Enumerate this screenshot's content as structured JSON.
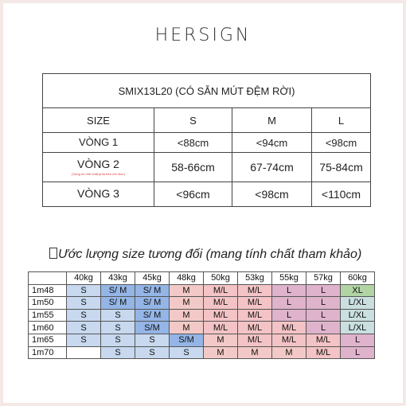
{
  "brand": "HERSIGN",
  "size_chart": {
    "title": "SMIX13L20 (CÓ SẴN MÚT ĐỆM RỜI)",
    "header": [
      "SIZE",
      "S",
      "M",
      "L"
    ],
    "rows": [
      {
        "label": "VÒNG 1",
        "note": "",
        "values": [
          "<88cm",
          "<94cm",
          "<98cm"
        ]
      },
      {
        "label": "VÒNG 2",
        "note": "(Vòng eo nhỏ nhất phía trên rốn 3cm)",
        "values": [
          "58-66cm",
          "67-74cm",
          "75-84cm"
        ]
      },
      {
        "label": "VÒNG 3",
        "note": "",
        "values": [
          "<96cm",
          "<98cm",
          "<110cm"
        ]
      }
    ]
  },
  "estimate": {
    "heading": "Ước lượng size tương đối (mang tính chất tham khảo)",
    "weights": [
      "40kg",
      "43kg",
      "45kg",
      "48kg",
      "50kg",
      "53kg",
      "55kg",
      "57kg",
      "60kg"
    ],
    "rows": [
      {
        "height": "1m48",
        "sizes": [
          "S",
          "S/ M",
          "S/ M",
          "M",
          "M/L",
          "M/L",
          "L",
          "L",
          "XL"
        ]
      },
      {
        "height": "1m50",
        "sizes": [
          "S",
          "S/ M",
          "S/ M",
          "M",
          "M/L",
          "M/L",
          "L",
          "L",
          "L/XL"
        ]
      },
      {
        "height": "1m55",
        "sizes": [
          "S",
          "S",
          "S/ M",
          "M",
          "M/L",
          "M/L",
          "L",
          "L",
          "L/XL"
        ]
      },
      {
        "height": "1m60",
        "sizes": [
          "S",
          "S",
          "S/M",
          "M",
          "M/L",
          "M/L",
          "M/L",
          "L",
          "L/XL"
        ]
      },
      {
        "height": "1m65",
        "sizes": [
          "S",
          "S",
          "S",
          "S/M",
          "M",
          "M/L",
          "M/L",
          "M/L",
          "L"
        ]
      },
      {
        "height": "1m70",
        "sizes": [
          "",
          "S",
          "S",
          "S",
          "M",
          "M",
          "M",
          "M/L",
          "L"
        ]
      }
    ],
    "colors": {
      "S": "#c7d8ef",
      "S/M": "#94b5e6",
      "M": "#f2c9c6",
      "M/L": "#f3c3c6",
      "L": "#dfb3cc",
      "XL": "#b2d4a5",
      "L/XL": "#c9dfe0",
      "blank": "#ffffff"
    }
  }
}
